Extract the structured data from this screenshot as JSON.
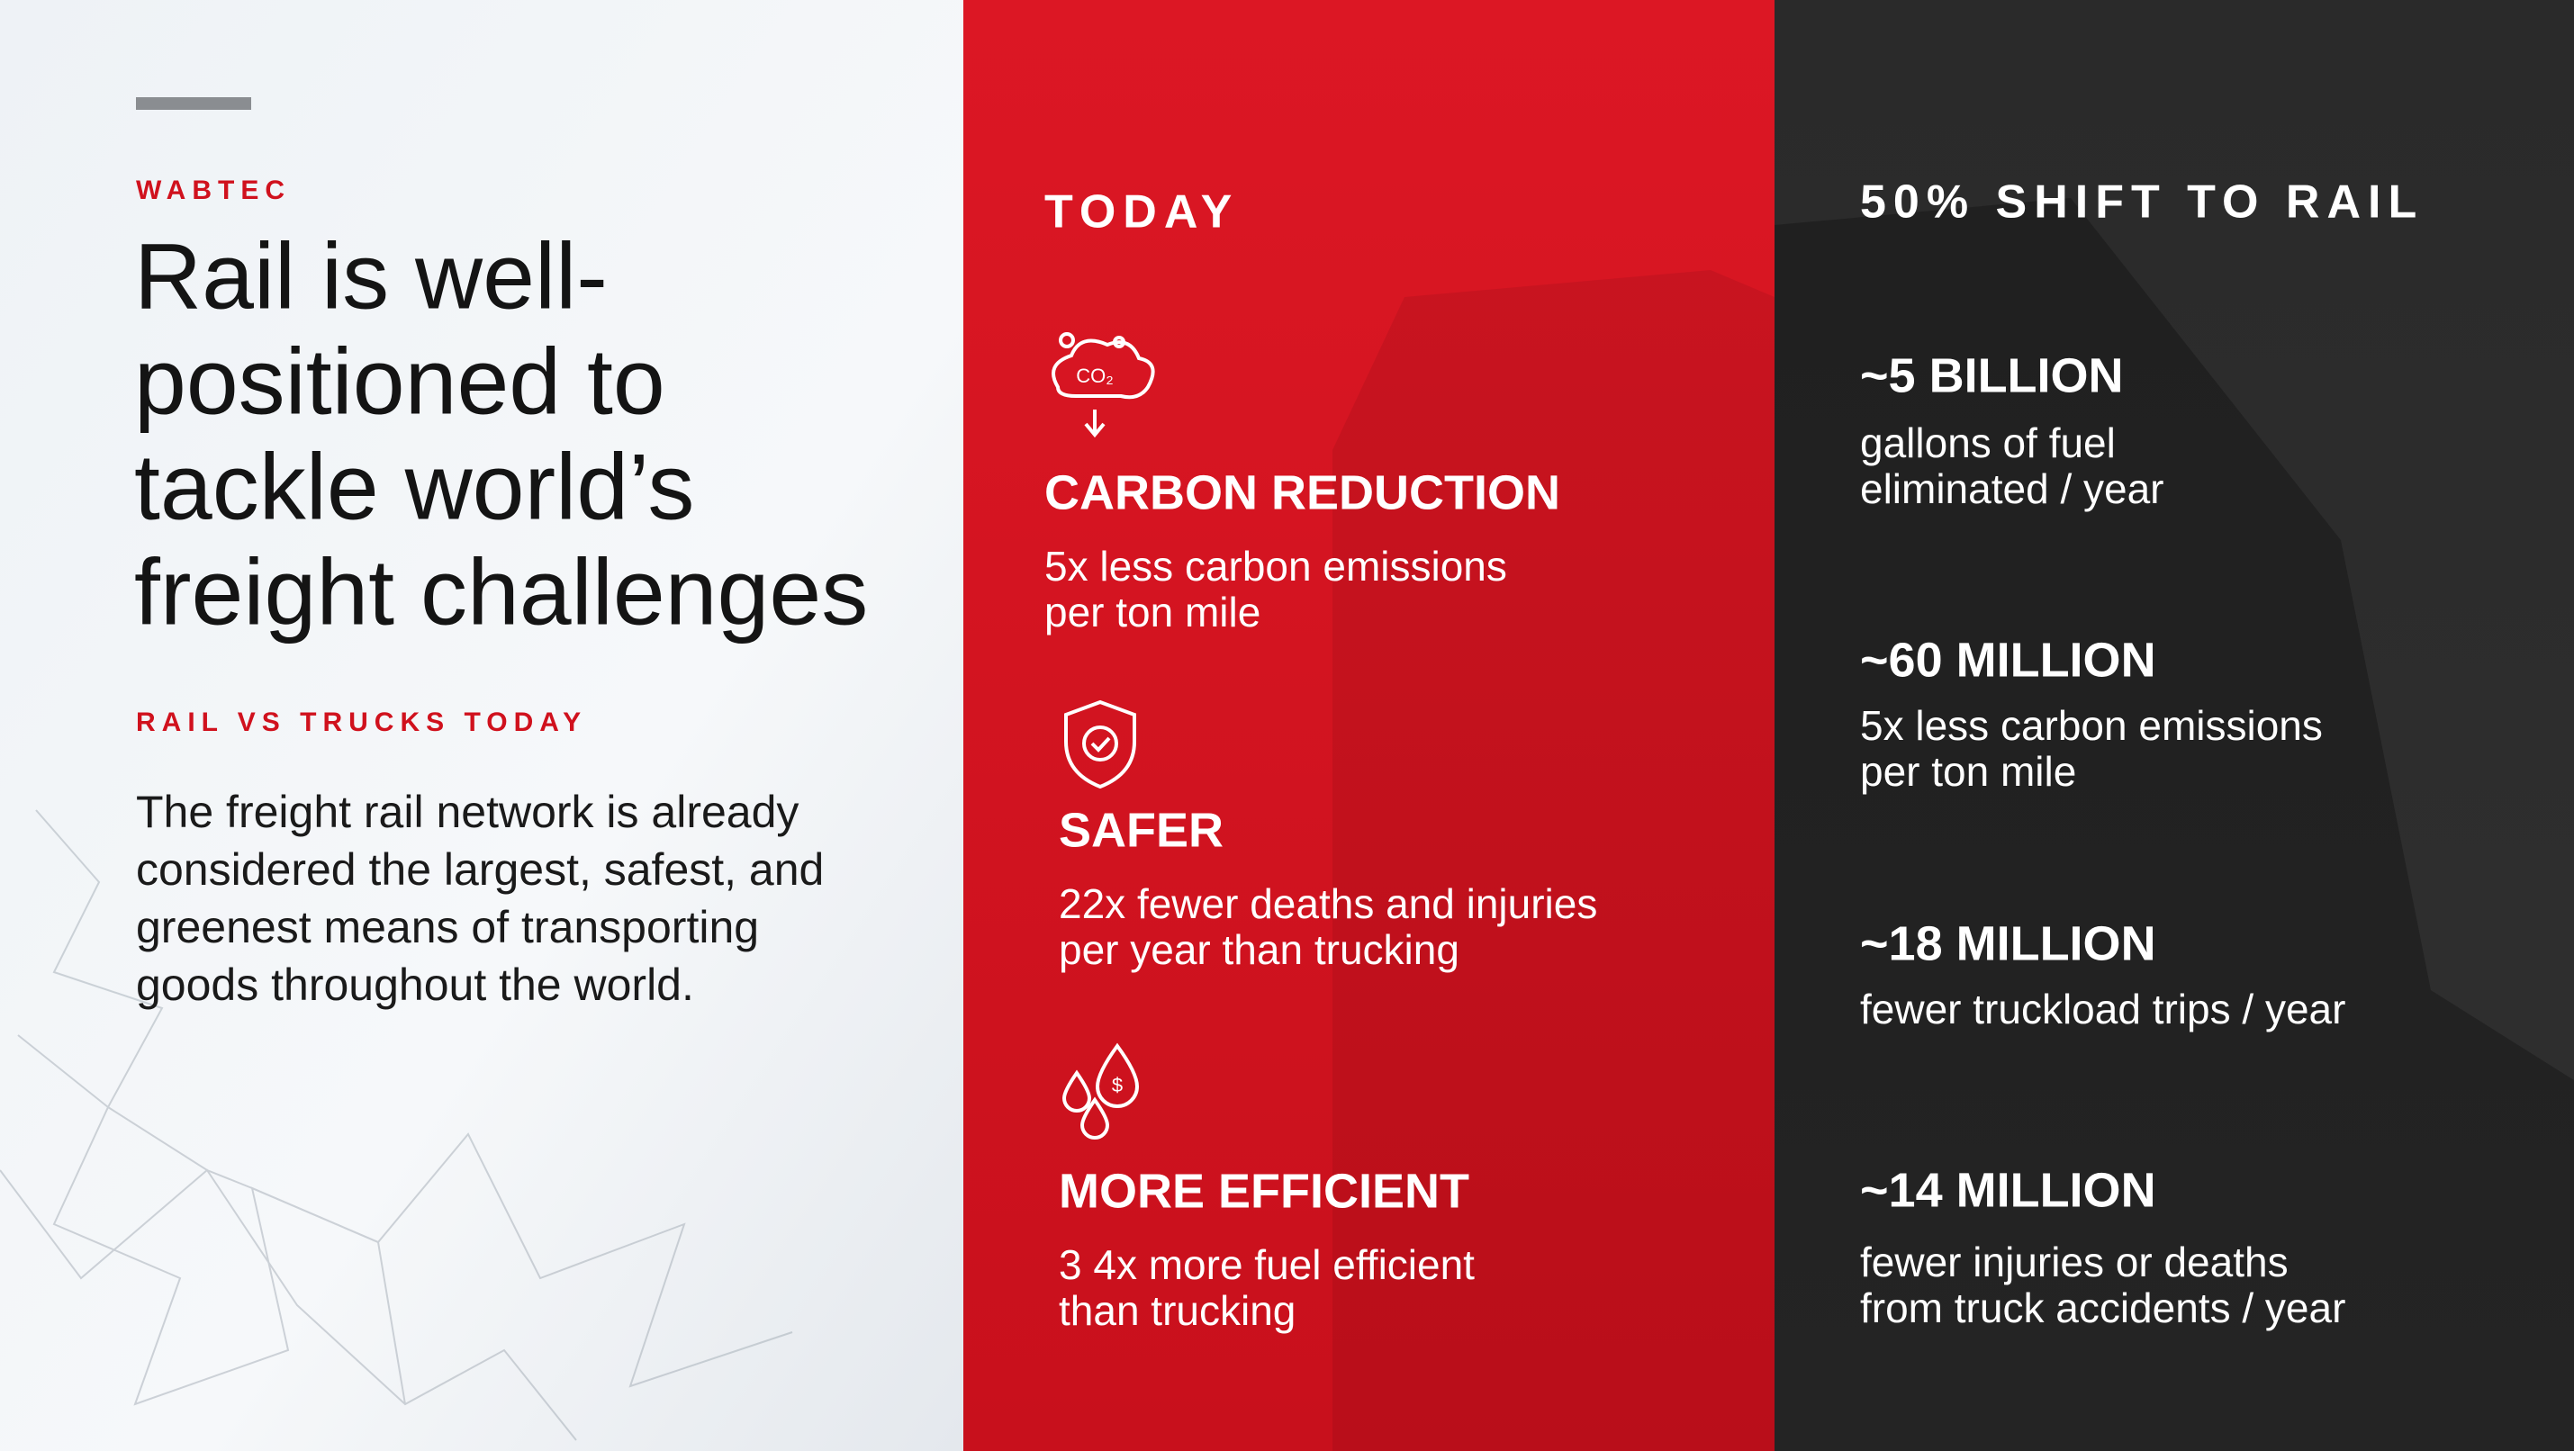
{
  "brand": "WABTEC",
  "title": [
    "Rail is well-",
    "positioned to",
    "tackle world’s",
    "freight challenges"
  ],
  "subtitle": "RAIL VS TRUCKS TODAY",
  "body": [
    "The freight rail network is already",
    "considered the largest, safest, and",
    "greenest means of transporting",
    "goods throughout the world."
  ],
  "today": {
    "heading": "TODAY",
    "items": [
      {
        "title": "CARBON REDUCTION",
        "lines": [
          "5x less carbon emissions",
          "per ton mile"
        ]
      },
      {
        "title": "SAFER",
        "lines": [
          "22x fewer deaths and injuries",
          "per year than trucking"
        ]
      },
      {
        "title": "MORE EFFICIENT",
        "lines": [
          "3 4x more fuel efficient",
          "than trucking"
        ]
      }
    ]
  },
  "shift": {
    "heading": "50% SHIFT TO RAIL",
    "items": [
      {
        "title": "~5 BILLION",
        "lines": [
          "gallons of fuel",
          "eliminated / year"
        ]
      },
      {
        "title": "~60 MILLION",
        "lines": [
          "5x less carbon emissions",
          "per ton mile"
        ]
      },
      {
        "title": "~18 MILLION",
        "lines": [
          "fewer truckload trips / year"
        ]
      },
      {
        "title": "~14 MILLION",
        "lines": [
          "fewer injuries or deaths",
          "from truck accidents / year"
        ]
      }
    ]
  }
}
